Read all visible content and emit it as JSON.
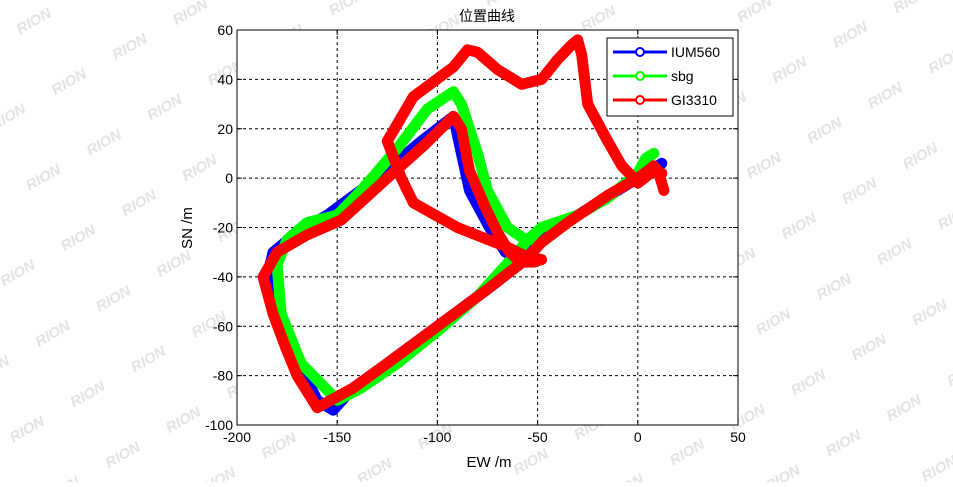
{
  "chart_data": {
    "type": "line",
    "title": "位置曲线",
    "xlabel": "EW  /m",
    "ylabel": "SN  /m",
    "xlim": [
      -200,
      50
    ],
    "ylim": [
      -100,
      60
    ],
    "xticks": [
      -200,
      -150,
      -100,
      -50,
      0,
      50
    ],
    "yticks": [
      -100,
      -80,
      -60,
      -40,
      -20,
      0,
      20,
      40,
      60
    ],
    "grid": true,
    "legend_position": "top-right",
    "watermark": "RION",
    "series": [
      {
        "name": "IUM560",
        "color": "#0000ff",
        "x": [
          12,
          8,
          5,
          0,
          -10,
          -30,
          -48,
          -56,
          -75,
          -100,
          -125,
          -142,
          -152,
          -160,
          -166,
          -171,
          -178,
          -185,
          -182,
          -170,
          -155,
          -130,
          -108,
          -92,
          -88,
          -84,
          -74,
          -66,
          -60,
          -56
        ],
        "y": [
          6,
          4,
          2,
          0,
          -5,
          -15,
          -25,
          -33,
          -45,
          -60,
          -75,
          -85,
          -94,
          -90,
          -80,
          -70,
          -55,
          -40,
          -30,
          -22,
          -15,
          0,
          15,
          25,
          10,
          -5,
          -20,
          -30,
          -33,
          -34
        ]
      },
      {
        "name": "sbg",
        "color": "#00ff00",
        "x": [
          8,
          4,
          0,
          -15,
          -30,
          -48,
          -55,
          -60,
          -80,
          -100,
          -120,
          -138,
          -150,
          -168,
          -178,
          -180,
          -175,
          -165,
          -150,
          -138,
          -120,
          -105,
          -92,
          -88,
          -80,
          -75,
          -65,
          -56,
          -52
        ],
        "y": [
          10,
          8,
          2,
          -8,
          -15,
          -20,
          -25,
          -30,
          -48,
          -62,
          -75,
          -85,
          -90,
          -75,
          -55,
          -35,
          -25,
          -18,
          -15,
          -5,
          12,
          28,
          35,
          30,
          10,
          -5,
          -20,
          -25,
          -25
        ]
      },
      {
        "name": "GI3310",
        "color": "#ff0000",
        "x": [
          13,
          12,
          10,
          8,
          5,
          0,
          -15,
          -35,
          -48,
          -56,
          -75,
          -100,
          -125,
          -142,
          -160,
          -170,
          -176,
          -182,
          -187,
          -180,
          -165,
          -148,
          -125,
          -107,
          -92,
          -88,
          -84,
          -76,
          -70,
          -64,
          -60,
          -56,
          -52,
          -48,
          -55,
          -65,
          -90,
          -112,
          -118,
          -125,
          -112,
          -92,
          -85,
          -80,
          -70,
          -58,
          -48,
          -40,
          -33,
          -30,
          -28,
          -25,
          -15,
          -8,
          -2,
          0,
          8,
          12
        ],
        "y": [
          -5,
          -2,
          3,
          5,
          3,
          0,
          -7,
          -18,
          -26,
          -33,
          -45,
          -60,
          -75,
          -85,
          -93,
          -80,
          -68,
          -55,
          -40,
          -30,
          -23,
          -17,
          0,
          13,
          25,
          20,
          3,
          -12,
          -22,
          -30,
          -33,
          -34,
          -34,
          -33,
          -32,
          -28,
          -20,
          -10,
          0,
          15,
          33,
          45,
          52,
          51,
          44,
          38,
          40,
          48,
          54,
          56,
          50,
          30,
          15,
          5,
          0,
          -2,
          3,
          2
        ]
      }
    ]
  }
}
